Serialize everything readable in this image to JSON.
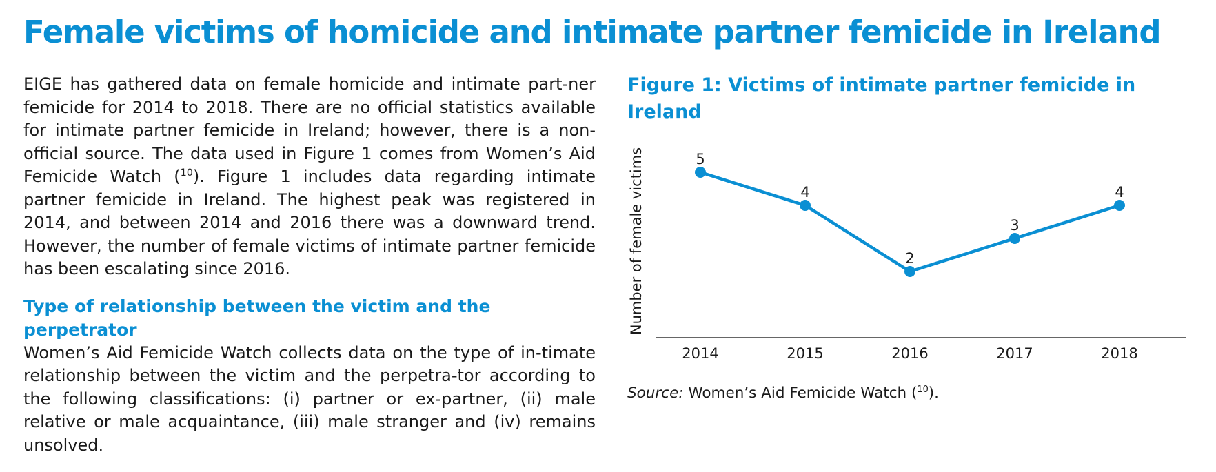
{
  "title": "Female victims of homicide and intimate partner femicide in Ireland",
  "intro": {
    "paragraph_before_ref": "EIGE has gathered data on female homicide and intimate part-ner femicide for 2014 to 2018. There are no official statistics available for intimate partner femicide in Ireland; however, there is a non-official source. The data used in Figure 1 comes from Women’s Aid Femicide Watch (",
    "ref": "10",
    "paragraph_after_ref": "). Figure 1 includes data regarding intimate partner femicide in Ireland. The highest peak was registered in 2014, and between 2014 and 2016 there was a downward trend. However, the number of female victims of intimate partner femicide has been escalating since 2016."
  },
  "relationship_section": {
    "heading": "Type of relationship between the victim and the perpetrator",
    "paragraph": "Women’s Aid Femicide Watch collects data on the type of in-timate relationship between the victim and the perpetra-tor according to the following classifications: (i) partner or ex-partner, (ii) male relative or male acquaintance, (iii) male stranger and (iv) remains unsolved."
  },
  "figure": {
    "title": "Figure 1: Victims of intimate partner femicide in Ireland",
    "source_label": "Source:",
    "source_text": " Women’s Aid Femicide Watch (",
    "source_ref": "10",
    "source_end": ")."
  },
  "colors": {
    "accent": "#0a8fd3",
    "text": "#1a1a1a",
    "axis": "#333333"
  },
  "chart_data": {
    "type": "line",
    "title": "Figure 1: Victims of intimate partner femicide in Ireland",
    "xlabel": "",
    "ylabel": "Number of female victims",
    "categories": [
      "2014",
      "2015",
      "2016",
      "2017",
      "2018"
    ],
    "series": [
      {
        "values": [
          5,
          4,
          2,
          3,
          4
        ]
      }
    ],
    "ylim": [
      0,
      5.5
    ],
    "grid": false,
    "data_labels": true,
    "color": "#0a8fd3"
  }
}
